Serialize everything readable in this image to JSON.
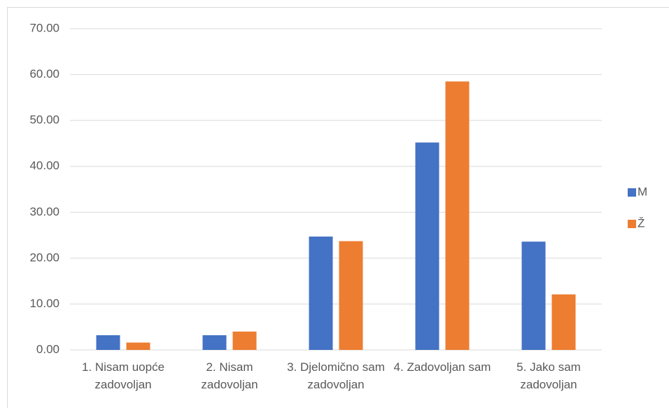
{
  "chart_data": {
    "type": "bar",
    "categories": [
      "1. Nisam uopće zadovoljan",
      "2. Nisam zadovoljan",
      "3. Djelomično sam zadovoljan",
      "4. Zadovoljan sam",
      "5. Jako sam zadovoljan"
    ],
    "series": [
      {
        "name": "M",
        "color": "#4472c4",
        "values": [
          3.2,
          3.2,
          24.7,
          45.2,
          23.6
        ]
      },
      {
        "name": "Ž",
        "color": "#ed7d31",
        "values": [
          1.6,
          4.0,
          23.7,
          58.5,
          12.1
        ]
      }
    ],
    "ylim": [
      0,
      70
    ],
    "yticks": [
      {
        "value": 0,
        "label": "0.00"
      },
      {
        "value": 10,
        "label": "10.00"
      },
      {
        "value": 20,
        "label": "20.00"
      },
      {
        "value": 30,
        "label": "30.00"
      },
      {
        "value": 40,
        "label": "40.00"
      },
      {
        "value": 50,
        "label": "50.00"
      },
      {
        "value": 60,
        "label": "60.00"
      },
      {
        "value": 70,
        "label": "70.00"
      }
    ],
    "grid": true,
    "legend": "right"
  }
}
